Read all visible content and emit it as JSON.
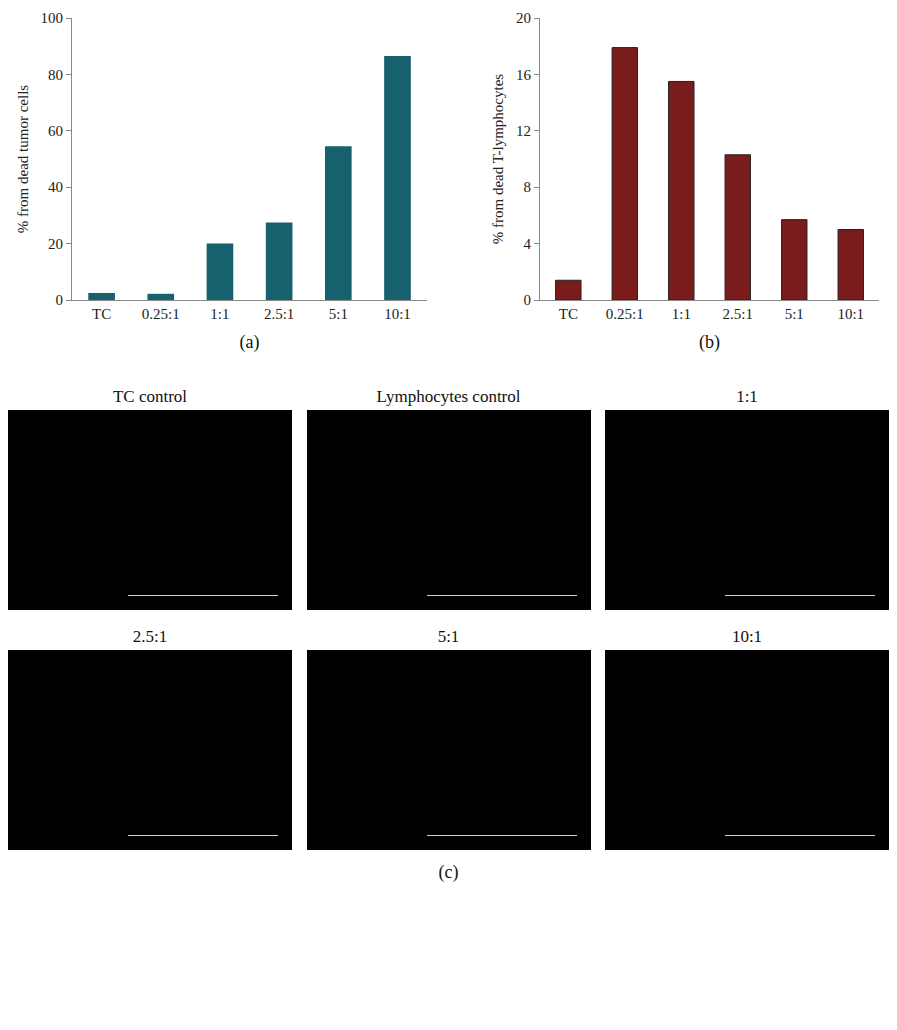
{
  "chart_data": [
    {
      "type": "bar",
      "label": "(a)",
      "y_label": "% from dead tumor cells",
      "categories": [
        "TC",
        "0.25:1",
        "1:1",
        "2.5:1",
        "5:1",
        "10:1"
      ],
      "values": [
        2.5,
        2.2,
        20,
        27.5,
        54.5,
        86.5
      ],
      "color": "#17606e",
      "ylim": [
        0,
        100
      ],
      "yticks": [
        0,
        20,
        40,
        60,
        80,
        100
      ],
      "grid": false
    },
    {
      "type": "bar",
      "label": "(b)",
      "y_label": "% from dead T-lymphocytes",
      "categories": [
        "TC",
        "0.25:1",
        "1:1",
        "2.5:1",
        "5:1",
        "10:1"
      ],
      "values": [
        1.4,
        17.9,
        15.5,
        10.3,
        5.7,
        5.0
      ],
      "color": "#7b1c1c",
      "ylim": [
        0,
        20
      ],
      "yticks": [
        0,
        4,
        8,
        12,
        16,
        20
      ],
      "grid": false
    }
  ],
  "images": {
    "label": "(c)",
    "panels": [
      "TC control",
      "Lymphocytes control",
      "1:1",
      "2.5:1",
      "5:1",
      "10:1"
    ]
  }
}
